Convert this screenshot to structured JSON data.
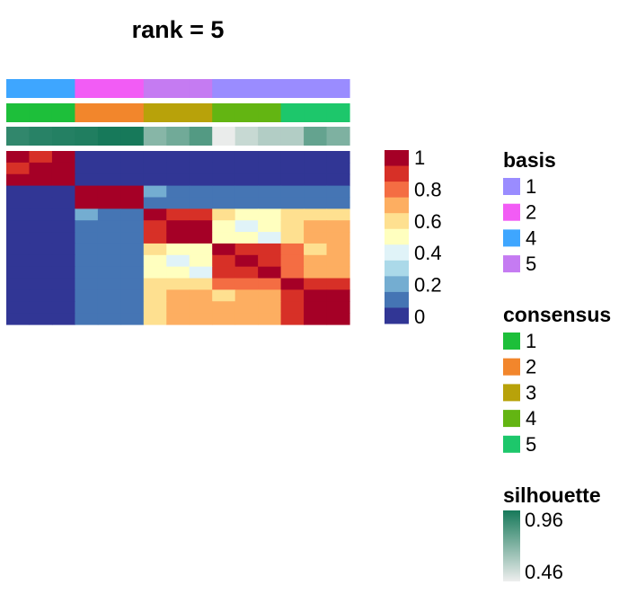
{
  "chart_data": {
    "type": "heatmap",
    "title": "rank =  5",
    "n_samples": 15,
    "matrix": [
      [
        1.0,
        0.9,
        1.0,
        0,
        0,
        0,
        0,
        0,
        0,
        0,
        0,
        0,
        0,
        0,
        0
      ],
      [
        0.9,
        1.0,
        1.0,
        0,
        0,
        0,
        0,
        0,
        0,
        0,
        0,
        0,
        0,
        0,
        0
      ],
      [
        1.0,
        1.0,
        1.0,
        0,
        0,
        0,
        0,
        0,
        0,
        0,
        0,
        0,
        0,
        0,
        0
      ],
      [
        0,
        0,
        0,
        1.0,
        1.0,
        1.0,
        0.25,
        0.15,
        0.15,
        0.15,
        0.15,
        0.15,
        0.15,
        0.15,
        0.15
      ],
      [
        0,
        0,
        0,
        1.0,
        1.0,
        1.0,
        0.15,
        0.15,
        0.15,
        0.15,
        0.15,
        0.15,
        0.15,
        0.15,
        0.15
      ],
      [
        0,
        0,
        0,
        0.25,
        0.15,
        0.15,
        1.0,
        0.9,
        0.9,
        0.65,
        0.55,
        0.55,
        0.65,
        0.65,
        0.65
      ],
      [
        0,
        0,
        0,
        0.15,
        0.15,
        0.15,
        0.9,
        1.0,
        1.0,
        0.55,
        0.45,
        0.5,
        0.65,
        0.75,
        0.75
      ],
      [
        0,
        0,
        0,
        0.15,
        0.15,
        0.15,
        0.9,
        1.0,
        1.0,
        0.55,
        0.55,
        0.45,
        0.65,
        0.75,
        0.75
      ],
      [
        0,
        0,
        0,
        0.15,
        0.15,
        0.15,
        0.65,
        0.55,
        0.55,
        1.0,
        0.9,
        0.9,
        0.8,
        0.65,
        0.75
      ],
      [
        0,
        0,
        0,
        0.15,
        0.15,
        0.15,
        0.55,
        0.45,
        0.55,
        0.9,
        1.0,
        0.9,
        0.8,
        0.75,
        0.75
      ],
      [
        0,
        0,
        0,
        0.15,
        0.15,
        0.15,
        0.55,
        0.5,
        0.45,
        0.9,
        0.9,
        1.0,
        0.8,
        0.75,
        0.75
      ],
      [
        0,
        0,
        0,
        0.15,
        0.15,
        0.15,
        0.65,
        0.65,
        0.65,
        0.8,
        0.8,
        0.8,
        1.0,
        0.9,
        0.9
      ],
      [
        0,
        0,
        0,
        0.15,
        0.15,
        0.15,
        0.65,
        0.75,
        0.75,
        0.65,
        0.75,
        0.75,
        0.9,
        1.0,
        1.0
      ],
      [
        0,
        0,
        0,
        0.15,
        0.15,
        0.15,
        0.65,
        0.75,
        0.75,
        0.75,
        0.75,
        0.75,
        0.9,
        1.0,
        1.0
      ],
      [
        0,
        0,
        0,
        0.15,
        0.15,
        0.15,
        0.65,
        0.75,
        0.75,
        0.75,
        0.75,
        0.75,
        0.9,
        1.0,
        1.0
      ]
    ],
    "annotations": {
      "basis": [
        4,
        4,
        4,
        2,
        2,
        2,
        5,
        5,
        5,
        1,
        1,
        1,
        1,
        1,
        1
      ],
      "consensus": [
        1,
        1,
        1,
        2,
        2,
        2,
        3,
        3,
        3,
        4,
        4,
        4,
        5,
        5,
        5
      ],
      "silhouette": [
        0.9,
        0.92,
        0.93,
        0.94,
        0.96,
        0.96,
        0.7,
        0.75,
        0.82,
        0.47,
        0.55,
        0.6,
        0.6,
        0.78,
        0.72
      ]
    },
    "color_scale": {
      "ticks": [
        "1",
        "0.8",
        "0.6",
        "0.4",
        "0.2",
        "0"
      ],
      "colors": [
        "#a50026",
        "#d73027",
        "#f46d43",
        "#fdae61",
        "#fee090",
        "#ffffbf",
        "#e0f3f8",
        "#abd9e9",
        "#74add1",
        "#4575b4",
        "#313695"
      ]
    },
    "legends": {
      "basis": {
        "title": "basis",
        "items": [
          {
            "label": "1",
            "color": "#9a8cff"
          },
          {
            "label": "2",
            "color": "#f25cf5"
          },
          {
            "label": "4",
            "color": "#3ea6ff"
          },
          {
            "label": "5",
            "color": "#c57bf2"
          }
        ]
      },
      "consensus": {
        "title": "consensus",
        "items": [
          {
            "label": "1",
            "color": "#1dbf3a"
          },
          {
            "label": "2",
            "color": "#f2862c"
          },
          {
            "label": "3",
            "color": "#b8a20a"
          },
          {
            "label": "4",
            "color": "#63b512"
          },
          {
            "label": "5",
            "color": "#1dc76b"
          }
        ]
      },
      "silhouette": {
        "title": "silhouette",
        "max_label": "0.96",
        "min_label": "0.46",
        "max_value": 0.96,
        "min_value": 0.46,
        "color_high": "#17795a",
        "color_low": "#eeeeee"
      }
    }
  }
}
